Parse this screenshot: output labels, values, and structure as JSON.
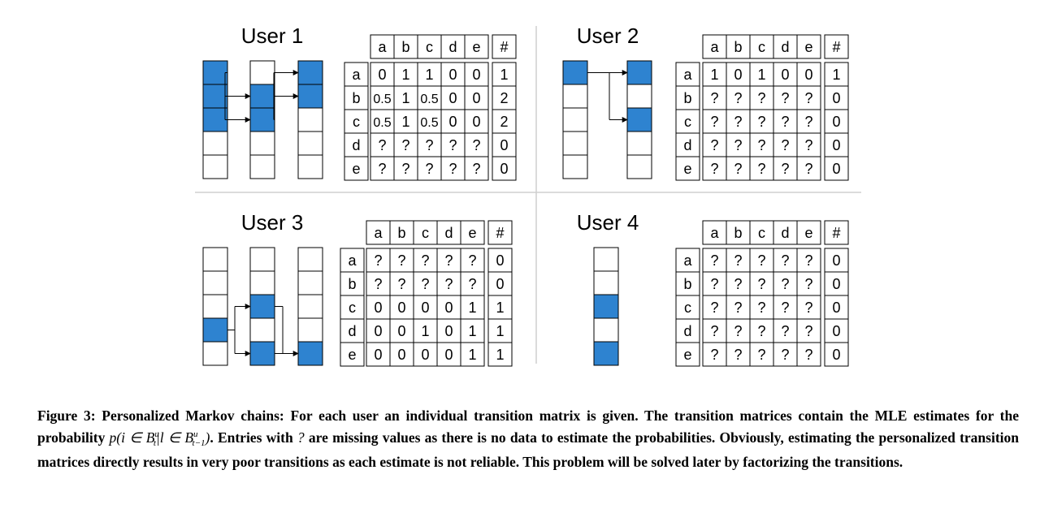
{
  "figure": {
    "highlight_color": "#2e83d0",
    "column_labels": [
      "a",
      "b",
      "c",
      "d",
      "e",
      "#"
    ],
    "users": [
      {
        "title": "User 1",
        "row_labels": [
          "a",
          "b",
          "c",
          "d",
          "e"
        ],
        "matrix": [
          [
            "0",
            "1",
            "1",
            "0",
            "0",
            "1"
          ],
          [
            "0.5",
            "1",
            "0.5",
            "0",
            "0",
            "2"
          ],
          [
            "0.5",
            "1",
            "0.5",
            "0",
            "0",
            "2"
          ],
          [
            "?",
            "?",
            "?",
            "?",
            "?",
            "0"
          ],
          [
            "?",
            "?",
            "?",
            "?",
            "?",
            "0"
          ]
        ],
        "baskets": [
          [
            "a",
            "b",
            "c"
          ],
          [
            "b",
            "c"
          ],
          [
            "a",
            "b"
          ]
        ]
      },
      {
        "title": "User 2",
        "row_labels": [
          "a",
          "b",
          "c",
          "d",
          "e"
        ],
        "matrix": [
          [
            "1",
            "0",
            "1",
            "0",
            "0",
            "1"
          ],
          [
            "?",
            "?",
            "?",
            "?",
            "?",
            "0"
          ],
          [
            "?",
            "?",
            "?",
            "?",
            "?",
            "0"
          ],
          [
            "?",
            "?",
            "?",
            "?",
            "?",
            "0"
          ],
          [
            "?",
            "?",
            "?",
            "?",
            "?",
            "0"
          ]
        ],
        "baskets": [
          [
            "a"
          ],
          [
            "a",
            "c"
          ]
        ]
      },
      {
        "title": "User 3",
        "row_labels": [
          "a",
          "b",
          "c",
          "d",
          "e"
        ],
        "matrix": [
          [
            "?",
            "?",
            "?",
            "?",
            "?",
            "0"
          ],
          [
            "?",
            "?",
            "?",
            "?",
            "?",
            "0"
          ],
          [
            "0",
            "0",
            "0",
            "0",
            "1",
            "1"
          ],
          [
            "0",
            "0",
            "1",
            "0",
            "1",
            "1"
          ],
          [
            "0",
            "0",
            "0",
            "0",
            "1",
            "1"
          ]
        ],
        "baskets": [
          [
            "d"
          ],
          [
            "c",
            "e"
          ],
          [
            "e"
          ]
        ]
      },
      {
        "title": "User 4",
        "row_labels": [
          "a",
          "b",
          "c",
          "d",
          "e"
        ],
        "matrix": [
          [
            "?",
            "?",
            "?",
            "?",
            "?",
            "0"
          ],
          [
            "?",
            "?",
            "?",
            "?",
            "?",
            "0"
          ],
          [
            "?",
            "?",
            "?",
            "?",
            "?",
            "0"
          ],
          [
            "?",
            "?",
            "?",
            "?",
            "?",
            "0"
          ],
          [
            "?",
            "?",
            "?",
            "?",
            "?",
            "0"
          ]
        ],
        "baskets": [
          [
            "c",
            "e"
          ]
        ]
      }
    ]
  },
  "caption": {
    "label": "Figure 3:",
    "text_1": " Personalized Markov chains: For each user an individual transition matrix is given. The transition matrices contain the MLE estimates for the probability ",
    "math_p": "p(i ∈ B",
    "math_sup_t": "u",
    "math_sub_t": "t",
    "math_mid": "|l ∈ B",
    "math_sup_t1": "u",
    "math_sub_t1": "t−1",
    "math_end": ")",
    "text_2": ". Entries with ",
    "math_q": "?",
    "text_3": " are missing values as there is no data to estimate the probabilities. Obviously, estimating the personalized transition matrices directly results in very poor transitions as each estimate is not reliable. This problem will be solved later by factorizing the transitions."
  }
}
